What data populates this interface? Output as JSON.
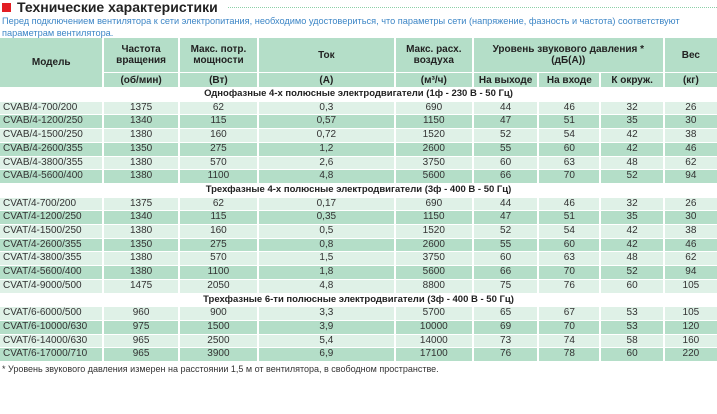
{
  "title": "Технические характеристики",
  "description": "Перед подключением вентилятора к сети электропитания, необходимо удостовериться, что параметры сети (напряжение, фазность и частота) соответствуют параметрам вентилятора.",
  "headers": {
    "model": "Модель",
    "rpm": "Частота вращения",
    "rpm_unit": "(об/мин)",
    "power": "Макс. потр. мощности",
    "power_unit": "(Вт)",
    "current": "Ток",
    "current_unit": "(А)",
    "airflow": "Макс. расх. воздуха",
    "airflow_unit": "(м³/ч)",
    "sound": "Уровень звукового давления *",
    "sound_unit": "(дБ(А))",
    "sound_out": "На выходе",
    "sound_in": "На входе",
    "sound_env": "К окруж.",
    "weight": "Вес",
    "weight_unit": "(кг)"
  },
  "sections": [
    {
      "title": "Однофазные 4-х полюсные электродвигатели (1ф - 230 В - 50 Гц)",
      "rows": [
        [
          "CVAB/4-700/200",
          "1375",
          "62",
          "0,3",
          "690",
          "44",
          "46",
          "32",
          "26"
        ],
        [
          "CVAB/4-1200/250",
          "1340",
          "115",
          "0,57",
          "1150",
          "47",
          "51",
          "35",
          "30"
        ],
        [
          "CVAB/4-1500/250",
          "1380",
          "160",
          "0,72",
          "1520",
          "52",
          "54",
          "42",
          "38"
        ],
        [
          "CVAB/4-2600/355",
          "1350",
          "275",
          "1,2",
          "2600",
          "55",
          "60",
          "42",
          "46"
        ],
        [
          "CVAB/4-3800/355",
          "1380",
          "570",
          "2,6",
          "3750",
          "60",
          "63",
          "48",
          "62"
        ],
        [
          "CVAB/4-5600/400",
          "1380",
          "1100",
          "4,8",
          "5600",
          "66",
          "70",
          "52",
          "94"
        ]
      ]
    },
    {
      "title": "Трехфазные 4-х полюсные электродвигатели (3ф - 400 В - 50 Гц)",
      "rows": [
        [
          "CVAT/4-700/200",
          "1375",
          "62",
          "0,17",
          "690",
          "44",
          "46",
          "32",
          "26"
        ],
        [
          "CVAT/4-1200/250",
          "1340",
          "115",
          "0,35",
          "1150",
          "47",
          "51",
          "35",
          "30"
        ],
        [
          "CVAT/4-1500/250",
          "1380",
          "160",
          "0,5",
          "1520",
          "52",
          "54",
          "42",
          "38"
        ],
        [
          "CVAT/4-2600/355",
          "1350",
          "275",
          "0,8",
          "2600",
          "55",
          "60",
          "42",
          "46"
        ],
        [
          "CVAT/4-3800/355",
          "1380",
          "570",
          "1,5",
          "3750",
          "60",
          "63",
          "48",
          "62"
        ],
        [
          "CVAT/4-5600/400",
          "1380",
          "1100",
          "1,8",
          "5600",
          "66",
          "70",
          "52",
          "94"
        ],
        [
          "CVAT/4-9000/500",
          "1475",
          "2050",
          "4,8",
          "8800",
          "75",
          "76",
          "60",
          "105"
        ]
      ]
    },
    {
      "title": "Трехфазные 6-ти полюсные электродвигатели (3ф - 400 В - 50 Гц)",
      "rows": [
        [
          "CVAT/6-6000/500",
          "960",
          "900",
          "3,3",
          "5700",
          "65",
          "67",
          "53",
          "105"
        ],
        [
          "CVAT/6-10000/630",
          "975",
          "1500",
          "3,9",
          "10000",
          "69",
          "70",
          "53",
          "120"
        ],
        [
          "CVAT/6-14000/630",
          "965",
          "2500",
          "5,4",
          "14000",
          "73",
          "74",
          "58",
          "160"
        ],
        [
          "CVAT/6-17000/710",
          "965",
          "3900",
          "6,9",
          "17100",
          "76",
          "78",
          "60",
          "220"
        ]
      ]
    }
  ],
  "footnote": "* Уровень звукового давления измерен на расстоянии 1,5 м от вентилятора, в свободном пространстве."
}
